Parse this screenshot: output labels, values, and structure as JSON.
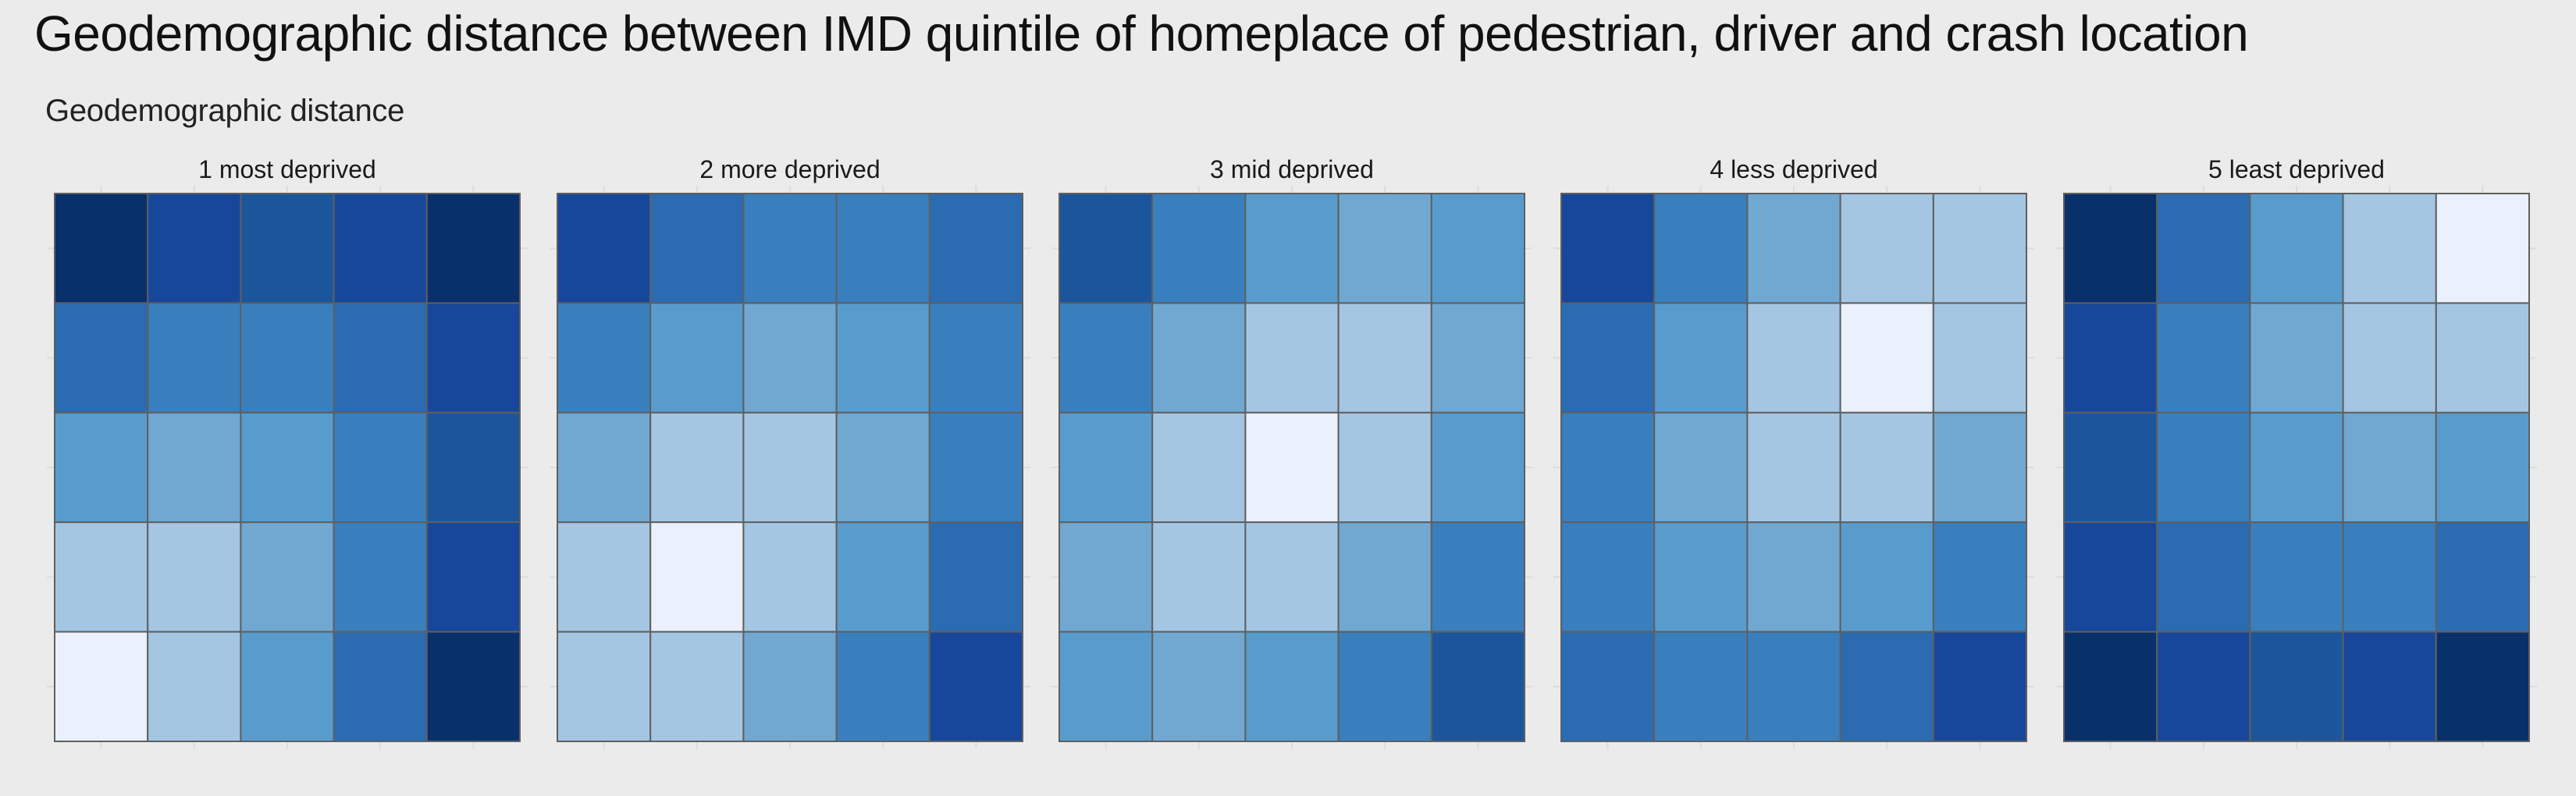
{
  "title": "Geodemographic distance between IMD quintile of homeplace of pedestrian, driver and crash location",
  "subtitle": "Geodemographic distance",
  "colors": {
    "background": "#ebebeb",
    "cell_border": "#5f5f5f",
    "palette": [
      "#08306b",
      "#17479a",
      "#1b569c",
      "#2a6bb1",
      "#3a7fbd",
      "#589cce",
      "#70a8d2",
      "#a4c6e2",
      "#eaf0fc"
    ]
  },
  "chart_data": {
    "type": "heatmap",
    "value_scale": "ordinal shade index 0 (darkest) to 8 (lightest)",
    "panels": [
      {
        "label": "1 most deprived",
        "grid": [
          [
            0,
            1,
            2,
            1,
            0
          ],
          [
            3,
            4,
            4,
            3,
            1
          ],
          [
            5,
            6,
            5,
            4,
            2
          ],
          [
            7,
            7,
            6,
            4,
            1
          ],
          [
            8,
            7,
            5,
            3,
            0
          ]
        ]
      },
      {
        "label": "2 more deprived",
        "grid": [
          [
            1,
            3,
            4,
            4,
            3
          ],
          [
            4,
            5,
            6,
            5,
            4
          ],
          [
            6,
            7,
            7,
            6,
            4
          ],
          [
            7,
            8,
            7,
            5,
            3
          ],
          [
            7,
            7,
            6,
            4,
            1
          ]
        ]
      },
      {
        "label": "3 mid deprived",
        "grid": [
          [
            2,
            4,
            5,
            6,
            5
          ],
          [
            4,
            6,
            7,
            7,
            6
          ],
          [
            5,
            7,
            8,
            7,
            5
          ],
          [
            6,
            7,
            7,
            6,
            4
          ],
          [
            5,
            6,
            5,
            4,
            2
          ]
        ]
      },
      {
        "label": "4 less deprived",
        "grid": [
          [
            1,
            4,
            6,
            7,
            7
          ],
          [
            3,
            5,
            7,
            8,
            7
          ],
          [
            4,
            6,
            7,
            7,
            6
          ],
          [
            4,
            5,
            6,
            5,
            4
          ],
          [
            3,
            4,
            4,
            3,
            1
          ]
        ]
      },
      {
        "label": "5 least deprived",
        "grid": [
          [
            0,
            3,
            5,
            7,
            8
          ],
          [
            1,
            4,
            6,
            7,
            7
          ],
          [
            2,
            4,
            5,
            6,
            5
          ],
          [
            1,
            3,
            4,
            4,
            3
          ],
          [
            0,
            1,
            2,
            1,
            0
          ]
        ]
      }
    ]
  }
}
